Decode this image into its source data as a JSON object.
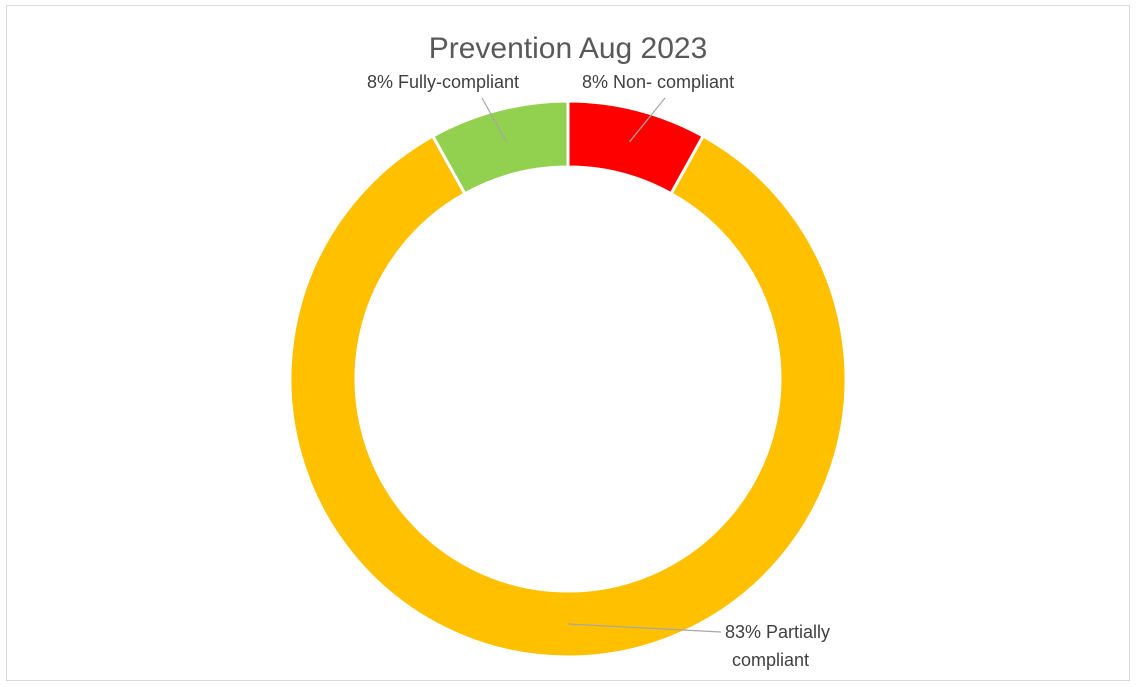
{
  "chart_data": {
    "type": "pie",
    "variant": "doughnut",
    "title": "Prevention Aug 2023",
    "slices": [
      {
        "name": "Non- compliant",
        "value": 8,
        "label": "8% Non- compliant",
        "color": "#ff0000"
      },
      {
        "name": "Partially compliant",
        "value": 83,
        "label_lines": [
          "83% Partially",
          "compliant"
        ],
        "color": "#ffc000"
      },
      {
        "name": "Fully-compliant",
        "value": 8,
        "label": "8% Fully-compliant",
        "color": "#92d050"
      }
    ],
    "legend": "none",
    "border_color": "#d9d9d9"
  }
}
